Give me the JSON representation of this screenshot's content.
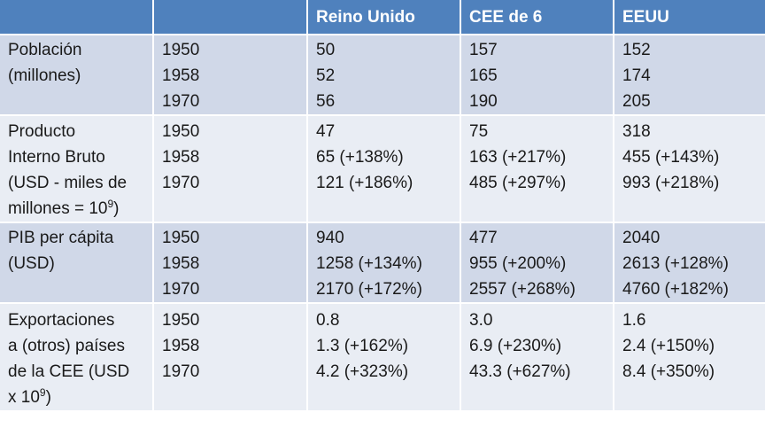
{
  "header": {
    "empty_1": "",
    "empty_2": "",
    "col_uk": "Reino Unido",
    "col_cee": "CEE de 6",
    "col_us": "EEUU"
  },
  "rows": [
    {
      "label_lines": [
        "Población",
        "(millones)"
      ],
      "years": [
        "1950",
        "1958",
        "1970"
      ],
      "uk": [
        "50",
        "52",
        "56"
      ],
      "cee": [
        "157",
        "165",
        "190"
      ],
      "us": [
        "152",
        "174",
        "205"
      ]
    },
    {
      "label_lines": [
        "Producto",
        "Interno Bruto",
        "(USD - miles de",
        "millones = 10",
        ")"
      ],
      "label_sup": "9",
      "years": [
        "1950",
        "1958",
        "1970"
      ],
      "uk": [
        "47",
        "65 (+138%)",
        "121 (+186%)"
      ],
      "cee": [
        "75",
        "163 (+217%)",
        "485 (+297%)"
      ],
      "us": [
        "318",
        "455 (+143%)",
        "993 (+218%)"
      ]
    },
    {
      "label_lines": [
        "PIB per cápita",
        "(USD)"
      ],
      "years": [
        "1950",
        "1958",
        "1970"
      ],
      "uk": [
        "940",
        "1258 (+134%)",
        "2170 (+172%)"
      ],
      "cee": [
        "477",
        "955 (+200%)",
        "2557 (+268%)"
      ],
      "us": [
        "2040",
        "2613 (+128%)",
        "4760 (+182%)"
      ]
    },
    {
      "label_lines": [
        "Exportaciones",
        "a (otros) países",
        "de la CEE (USD",
        "x 10",
        ")"
      ],
      "label_sup": "9",
      "years": [
        "1950",
        "1958",
        "1970"
      ],
      "uk": [
        "0.8",
        "1.3 (+162%)",
        "4.2 (+323%)"
      ],
      "cee": [
        "3.0",
        "6.9 (+230%)",
        "43.3 (+627%)"
      ],
      "us": [
        "1.6",
        "2.4 (+150%)",
        "8.4 (+350%)"
      ]
    }
  ],
  "colors": {
    "header_bg": "#4f81bd",
    "row_odd_bg": "#d0d8e8",
    "row_even_bg": "#e9edf4"
  }
}
